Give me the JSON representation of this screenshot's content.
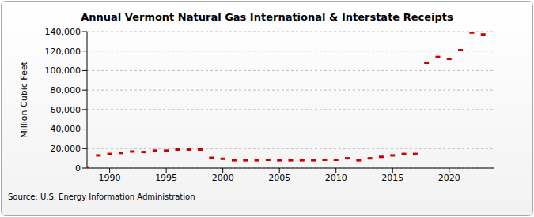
{
  "chart_data": {
    "type": "scatter",
    "title": "Annual Vermont Natural Gas International & Interstate Receipts",
    "y_label": "Million Cubic Feet",
    "source": "Source: U.S. Energy Information Administration",
    "x": [
      1988,
      1989,
      1990,
      1991,
      1992,
      1993,
      1994,
      1995,
      1996,
      1997,
      1998,
      1999,
      2000,
      2001,
      2002,
      2003,
      2004,
      2005,
      2006,
      2007,
      2008,
      2009,
      2010,
      2011,
      2012,
      2013,
      2014,
      2015,
      2016,
      2017,
      2018,
      2019,
      2020,
      2021,
      2022,
      2023
    ],
    "series": [
      {
        "name": "Vermont Natural Gas International & Interstate Receipts",
        "color": "#cc0000",
        "marker": "dash",
        "values": [
          0,
          13000,
          14500,
          15500,
          17000,
          16500,
          18000,
          18000,
          19000,
          19000,
          19000,
          10500,
          9500,
          8000,
          8000,
          8000,
          8500,
          8000,
          8000,
          8000,
          8000,
          8500,
          8500,
          10000,
          8000,
          10000,
          11500,
          13000,
          14500,
          14500,
          108000,
          114000,
          112000,
          121000,
          139000,
          137000
        ]
      }
    ],
    "xlim": [
      1988,
      2024
    ],
    "xticks": [
      1990,
      1995,
      2000,
      2005,
      2010,
      2015,
      2020
    ],
    "ylim": [
      0,
      140000
    ],
    "yticks": [
      0,
      {
        "value": 20000,
        "label": "20,000"
      },
      {
        "value": 40000,
        "label": "40,000"
      },
      {
        "value": 60000,
        "label": "60,000"
      },
      {
        "value": 80000,
        "label": "80,000"
      },
      {
        "value": 100000,
        "label": "100,000"
      },
      {
        "value": 120000,
        "label": "120,000"
      },
      {
        "value": 140000,
        "label": "140,000"
      }
    ],
    "grid": true
  }
}
